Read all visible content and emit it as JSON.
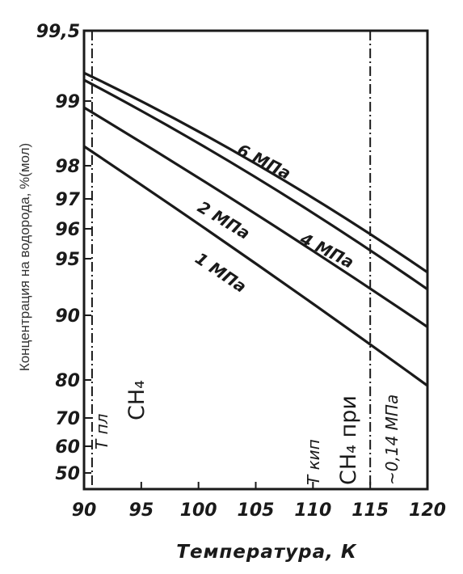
{
  "chart_data": {
    "type": "line",
    "title": "",
    "xlabel": "Температура, К",
    "ylabel": "Концентрация на водорода, %(мол)",
    "xlim": [
      90,
      120
    ],
    "x_ticks": [
      "90",
      "95",
      "100",
      "105",
      "110",
      "115",
      "120"
    ],
    "y_ticks": [
      "99,5",
      "99",
      "98",
      "97",
      "96",
      "95",
      "90",
      "80",
      "70",
      "60",
      "50"
    ],
    "y_tick_values": [
      99.5,
      99,
      98,
      97,
      96,
      95,
      90,
      80,
      70,
      60,
      50
    ],
    "grid": false,
    "x": [
      90,
      120
    ],
    "series": [
      {
        "name": "6 МПа",
        "values": [
          99.2,
          93.8
        ]
      },
      {
        "name": "4 МПа",
        "values": [
          99.15,
          92.3
        ]
      },
      {
        "name": "2 МПа",
        "values": [
          98.9,
          88.2
        ]
      },
      {
        "name": "1 МПа",
        "values": [
          98.3,
          78.5
        ]
      }
    ],
    "vertical_markers": [
      {
        "x": 90.7,
        "label_line1": "Т пл",
        "label_line2": "CH₄"
      },
      {
        "x": 115,
        "label_line1": "Т кип",
        "label_line2": "CH₄ при",
        "label_line3": "~0,14 МПа"
      }
    ],
    "colors": {
      "line": "#1a1a1a",
      "background": "#ffffff"
    }
  }
}
